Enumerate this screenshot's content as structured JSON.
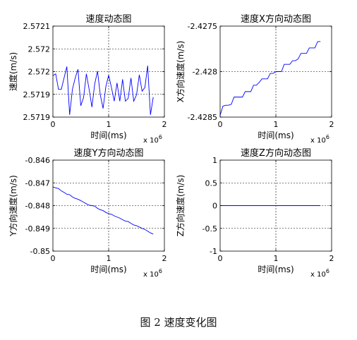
{
  "figure_caption": "图 2  速度变化图",
  "chart_data": [
    {
      "type": "line",
      "title": "速度动态图",
      "xlabel": "时间(ms)",
      "ylabel": "速度(m/s)",
      "x_multiplier": "x 10^6",
      "xlim": [
        0,
        2
      ],
      "ylim": [
        2.5719,
        2.5721
      ],
      "xticks": [
        "0",
        "1",
        "2"
      ],
      "yticks": [
        "2.5719",
        "2.5719",
        "2.572",
        "2.572",
        "2.5721"
      ],
      "ytick_values": [
        2.5719,
        2.57195,
        2.572,
        2.57205,
        2.5721
      ],
      "grid": "dashed",
      "series": [
        {
          "color": "#0000ff",
          "x": [
            0,
            0.05,
            0.1,
            0.15,
            0.2,
            0.25,
            0.3,
            0.35,
            0.4,
            0.45,
            0.5,
            0.55,
            0.6,
            0.65,
            0.7,
            0.75,
            0.8,
            0.85,
            0.9,
            0.95,
            1.0,
            1.05,
            1.1,
            1.15,
            1.2,
            1.25,
            1.3,
            1.35,
            1.4,
            1.45,
            1.5,
            1.55,
            1.6,
            1.65,
            1.7,
            1.75,
            1.8
          ],
          "y": [
            2.571991,
            2.571995,
            2.571961,
            2.571961,
            2.571986,
            2.572011,
            2.571905,
            2.571961,
            2.571986,
            2.572005,
            2.571925,
            2.571943,
            2.571995,
            2.571961,
            2.571922,
            2.571973,
            2.572001,
            2.571949,
            2.571919,
            2.571967,
            2.571992,
            2.571965,
            2.571935,
            2.571975,
            2.571935,
            2.571983,
            2.571935,
            2.571941,
            2.571986,
            2.571935,
            2.571949,
            2.571993,
            2.571957,
            2.571965,
            2.572013,
            2.571905,
            2.571944
          ]
        }
      ]
    },
    {
      "type": "line",
      "title": "速度X方向动态图",
      "xlabel": "时间(ms)",
      "ylabel": "X方向速度(m/s)",
      "x_multiplier": "x 10^6",
      "xlim": [
        0,
        2
      ],
      "ylim": [
        -2.4285,
        -2.4275
      ],
      "xticks": [
        "0",
        "1",
        "2"
      ],
      "yticks": [
        "-2.4285",
        "-2.428",
        "-2.4275"
      ],
      "ytick_values": [
        -2.4285,
        -2.428,
        -2.4275
      ],
      "grid": "dashed",
      "series": [
        {
          "color": "#0000ff",
          "x": [
            0,
            0.02,
            0.05,
            0.1,
            0.15,
            0.2,
            0.25,
            0.3,
            0.35,
            0.4,
            0.45,
            0.5,
            0.55,
            0.6,
            0.65,
            0.7,
            0.75,
            0.8,
            0.85,
            0.9,
            0.95,
            1.0,
            1.05,
            1.1,
            1.15,
            1.2,
            1.25,
            1.3,
            1.35,
            1.4,
            1.45,
            1.5,
            1.55,
            1.6,
            1.65,
            1.7,
            1.75,
            1.8
          ],
          "y": [
            -2.42848,
            -2.42844,
            -2.42838,
            -2.42837,
            -2.42837,
            -2.42836,
            -2.42828,
            -2.42828,
            -2.42828,
            -2.42828,
            -2.42822,
            -2.42822,
            -2.42822,
            -2.42815,
            -2.42815,
            -2.42812,
            -2.42808,
            -2.42808,
            -2.42808,
            -2.42802,
            -2.42802,
            -2.428,
            -2.428,
            -2.428,
            -2.42792,
            -2.42792,
            -2.42792,
            -2.42788,
            -2.42788,
            -2.42786,
            -2.4278,
            -2.4278,
            -2.4278,
            -2.42774,
            -2.42774,
            -2.42774,
            -2.42767,
            -2.42767
          ]
        }
      ]
    },
    {
      "type": "line",
      "title": "速度Y方向动态图",
      "xlabel": "时间(ms)",
      "ylabel": "Y方向速度(m/s)",
      "x_multiplier": "x 10^6",
      "xlim": [
        0,
        2
      ],
      "ylim": [
        -0.85,
        -0.846
      ],
      "xticks": [
        "0",
        "1",
        "2"
      ],
      "yticks": [
        "-0.85",
        "-0.849",
        "-0.848",
        "-0.847",
        "-0.846"
      ],
      "ytick_values": [
        -0.85,
        -0.849,
        -0.848,
        -0.847,
        -0.846
      ],
      "grid": "dashed",
      "series": [
        {
          "color": "#0000ff",
          "x": [
            0,
            0.05,
            0.1,
            0.15,
            0.2,
            0.25,
            0.3,
            0.35,
            0.4,
            0.45,
            0.5,
            0.55,
            0.6,
            0.65,
            0.7,
            0.75,
            0.8,
            0.85,
            0.9,
            0.95,
            1.0,
            1.05,
            1.1,
            1.15,
            1.2,
            1.25,
            1.3,
            1.35,
            1.4,
            1.45,
            1.5,
            1.55,
            1.6,
            1.65,
            1.7,
            1.75,
            1.8
          ],
          "y": [
            -0.84718,
            -0.84722,
            -0.84725,
            -0.84735,
            -0.84742,
            -0.8475,
            -0.84752,
            -0.84762,
            -0.84768,
            -0.84772,
            -0.84778,
            -0.84785,
            -0.84792,
            -0.84798,
            -0.848,
            -0.84802,
            -0.84812,
            -0.84818,
            -0.84822,
            -0.8483,
            -0.84835,
            -0.84838,
            -0.84845,
            -0.8485,
            -0.84855,
            -0.84862,
            -0.84868,
            -0.8487,
            -0.84878,
            -0.84885,
            -0.84888,
            -0.84894,
            -0.849,
            -0.84905,
            -0.84912,
            -0.8492,
            -0.84925
          ]
        }
      ]
    },
    {
      "type": "line",
      "title": "速度Z方向动态图",
      "xlabel": "时间(ms)",
      "ylabel": "Z方向速度(m/s)",
      "x_multiplier": "x 10^6",
      "xlim": [
        0,
        2
      ],
      "ylim": [
        -1,
        1
      ],
      "xticks": [
        "0",
        "1",
        "2"
      ],
      "yticks": [
        "-1",
        "-0.5",
        "0",
        "0.5",
        "1"
      ],
      "ytick_values": [
        -1,
        -0.5,
        0,
        0.5,
        1
      ],
      "grid": "dashed",
      "series": [
        {
          "color": "#0000ff",
          "x": [
            0,
            1.8
          ],
          "y": [
            0,
            0
          ]
        }
      ]
    }
  ]
}
